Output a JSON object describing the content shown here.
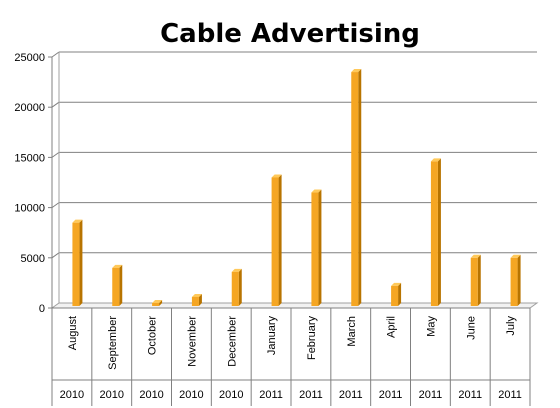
{
  "chart_data": {
    "type": "bar",
    "title": "Cable Advertising",
    "categories": [
      "August",
      "September",
      "October",
      "November",
      "December",
      "January",
      "February",
      "March",
      "April",
      "May",
      "June",
      "July"
    ],
    "years": [
      "2010",
      "2010",
      "2010",
      "2010",
      "2010",
      "2011",
      "2011",
      "2011",
      "2011",
      "2011",
      "2011",
      "2011"
    ],
    "values": [
      8500,
      4000,
      500,
      1100,
      3600,
      13000,
      11500,
      23500,
      2200,
      14600,
      5000,
      5000
    ],
    "y_ticks": [
      "0",
      "5000",
      "10000",
      "15000",
      "20000",
      "25000"
    ],
    "ylim": [
      0,
      25000
    ],
    "grid": true,
    "legend": "none",
    "bar_color": "#f5a623",
    "bar_side_color": "#b87400",
    "bar_top_color": "#ffc95a"
  }
}
